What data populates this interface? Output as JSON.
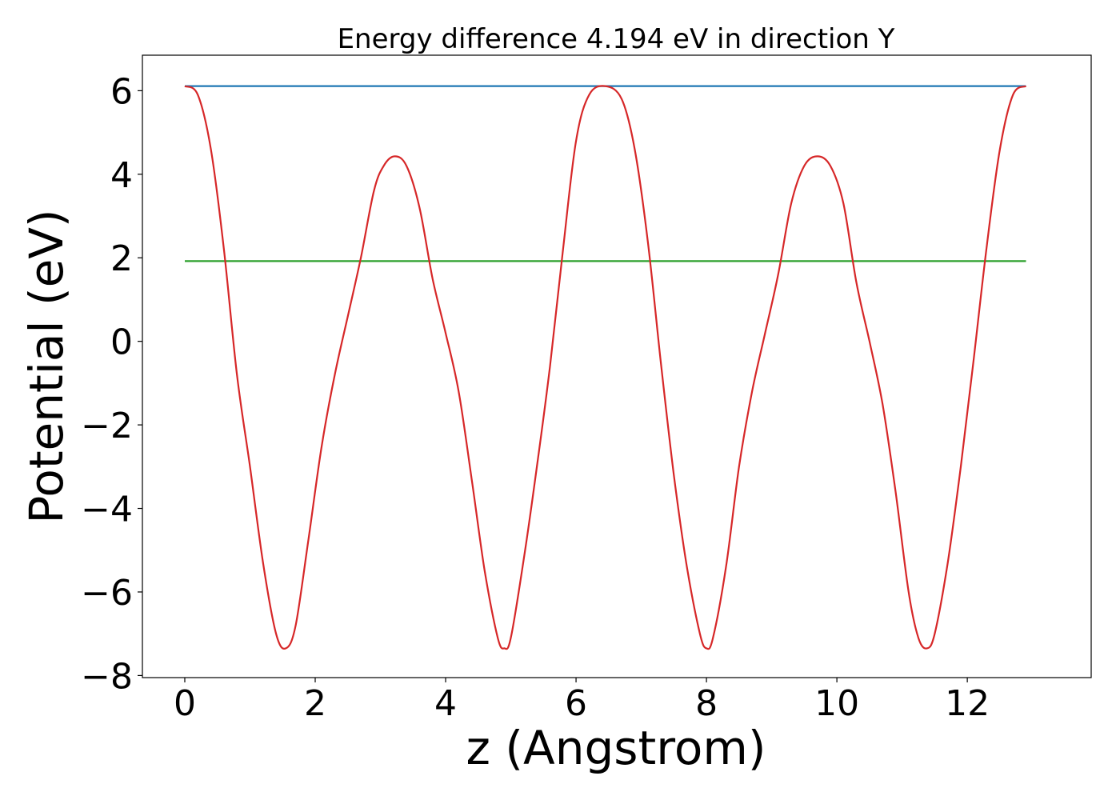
{
  "chart_data": {
    "type": "line",
    "title": "Energy difference 4.194 eV in direction Y",
    "xlabel": "z (Angstrom)",
    "ylabel": "Potential (eV)",
    "xlim": [
      -0.65,
      13.9
    ],
    "ylim": [
      -8.05,
      6.85
    ],
    "xticks": [
      0,
      2,
      4,
      6,
      8,
      10,
      12
    ],
    "xtick_labels": [
      "0",
      "2",
      "4",
      "6",
      "8",
      "10",
      "12"
    ],
    "yticks": [
      -8,
      -6,
      -4,
      -2,
      0,
      2,
      4,
      6
    ],
    "ytick_labels": [
      "−8",
      "−6",
      "−4",
      "−2",
      "0",
      "2",
      "4",
      "6"
    ],
    "grid": false,
    "series": [
      {
        "color": "#1f77b4",
        "x": [
          0,
          12.9
        ],
        "y": [
          6.11,
          6.11
        ]
      },
      {
        "color": "#2ca02c",
        "x": [
          0,
          12.9
        ],
        "y": [
          1.92,
          1.92
        ]
      },
      {
        "color": "#d62728",
        "x": [
          0,
          0.2,
          0.4,
          0.6,
          0.8,
          1.0,
          1.2,
          1.4,
          1.55,
          1.7,
          1.9,
          2.1,
          2.3,
          2.5,
          2.7,
          2.9,
          3.05,
          3.22,
          3.4,
          3.6,
          3.8,
          4.0,
          4.2,
          4.4,
          4.6,
          4.8,
          4.9,
          5.0,
          5.2,
          5.4,
          5.6,
          5.8,
          6.0,
          6.2,
          6.45,
          6.7,
          6.9,
          7.1,
          7.3,
          7.5,
          7.7,
          7.9,
          8.0,
          8.1,
          8.3,
          8.5,
          8.7,
          8.9,
          9.1,
          9.3,
          9.5,
          9.7,
          9.9,
          10.1,
          10.3,
          10.5,
          10.7,
          10.9,
          11.1,
          11.25,
          11.38,
          11.5,
          11.7,
          11.9,
          12.1,
          12.3,
          12.5,
          12.7,
          12.9
        ],
        "y": [
          6.11,
          5.9,
          4.6,
          2.2,
          -0.8,
          -3.0,
          -5.3,
          -7.0,
          -7.35,
          -6.8,
          -4.7,
          -2.5,
          -0.8,
          0.6,
          2.0,
          3.6,
          4.2,
          4.43,
          4.2,
          3.2,
          1.5,
          0.2,
          -1.2,
          -3.3,
          -5.5,
          -7.1,
          -7.35,
          -7.1,
          -5.2,
          -3.0,
          -0.6,
          2.2,
          4.8,
          5.9,
          6.11,
          5.8,
          4.6,
          2.4,
          -0.5,
          -3.2,
          -5.4,
          -7.0,
          -7.35,
          -7.1,
          -5.4,
          -3.0,
          -1.2,
          0.2,
          1.6,
          3.3,
          4.2,
          4.43,
          4.2,
          3.3,
          1.4,
          0.0,
          -1.5,
          -3.6,
          -6.0,
          -7.1,
          -7.35,
          -7.0,
          -5.3,
          -3.0,
          -0.4,
          2.3,
          4.6,
          5.9,
          6.11
        ]
      }
    ]
  }
}
